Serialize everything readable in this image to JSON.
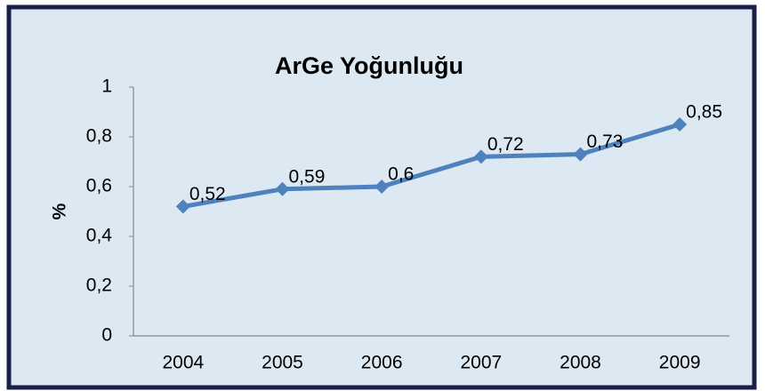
{
  "chart_data": {
    "type": "line",
    "title": "ArGe Yoğunluğu",
    "y_label": "%",
    "categories": [
      "2004",
      "2005",
      "2006",
      "2007",
      "2008",
      "2009"
    ],
    "series": [
      {
        "name": "ArGe Yoğunluğu",
        "color": "#4f81bd",
        "values": [
          0.52,
          0.59,
          0.6,
          0.72,
          0.73,
          0.85
        ],
        "value_labels": [
          "0,52",
          "0,59",
          "0,6",
          "0,72",
          "0,73",
          "0,85"
        ]
      }
    ],
    "ylim": [
      0,
      1
    ],
    "yticks": [
      0,
      {
        "value": 0.2,
        "label": "0,2"
      },
      {
        "value": 0.4,
        "label": "0,4"
      },
      {
        "value": 0.6,
        "label": "0,6"
      },
      {
        "value": 0.8,
        "label": "0,8"
      },
      1
    ],
    "grid": false
  }
}
